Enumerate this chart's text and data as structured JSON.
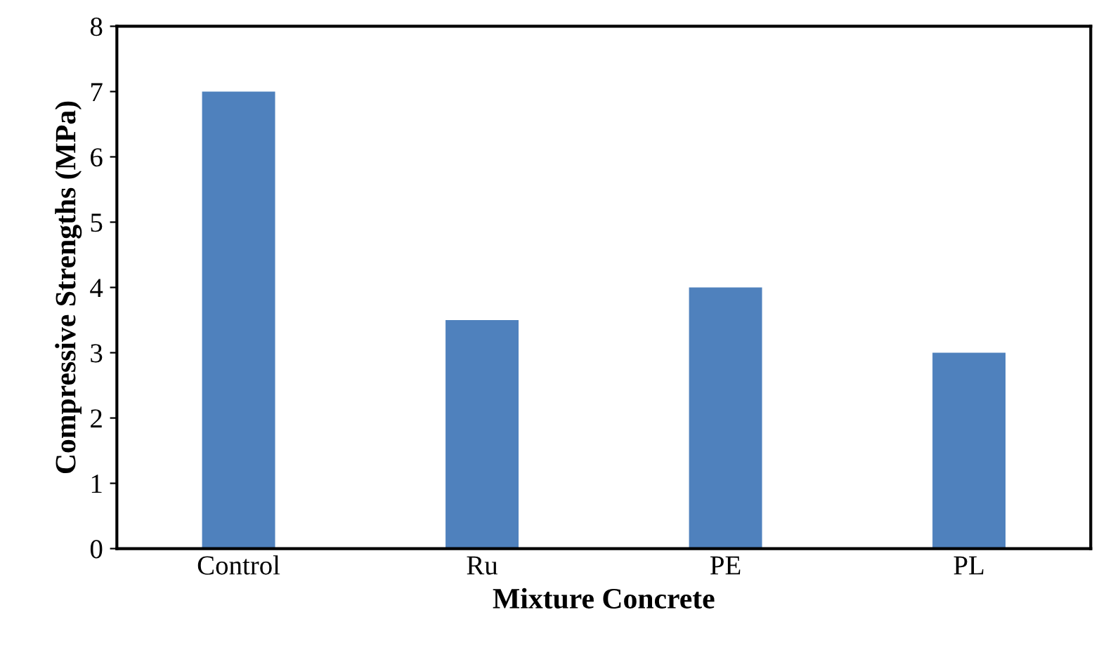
{
  "chart_data": {
    "type": "bar",
    "xlabel": "Mixture Concrete",
    "ylabel": "Compressive Strengths (MPa)",
    "categories": [
      "Control",
      "Ru",
      "PE",
      "PL"
    ],
    "values": [
      7,
      3.5,
      4,
      3
    ],
    "color": "#4f81bd",
    "ylim": [
      0,
      8
    ],
    "yticks": [
      0,
      1,
      2,
      3,
      4,
      5,
      6,
      7,
      8
    ],
    "grid": false
  }
}
